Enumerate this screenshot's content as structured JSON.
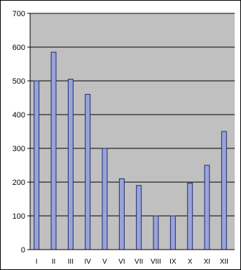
{
  "chart_data": {
    "type": "bar",
    "title": "",
    "xlabel": "",
    "ylabel": "",
    "categories": [
      "I",
      "II",
      "III",
      "IV",
      "V",
      "VI",
      "VII",
      "VIII",
      "IX",
      "X",
      "XI",
      "XII"
    ],
    "values": [
      500,
      585,
      505,
      460,
      300,
      210,
      190,
      100,
      100,
      197,
      250,
      350
    ],
    "ylim": [
      0,
      700
    ],
    "yticks": [
      "0",
      "100",
      "200",
      "300",
      "400",
      "500",
      "600",
      "700"
    ],
    "grid": true,
    "legend": "none",
    "colors": {
      "plot_background": "#c0c0c0",
      "bar_fill": "#9aa3d8",
      "bar_stroke": "#1f2a6e",
      "grid": "#000000"
    }
  }
}
